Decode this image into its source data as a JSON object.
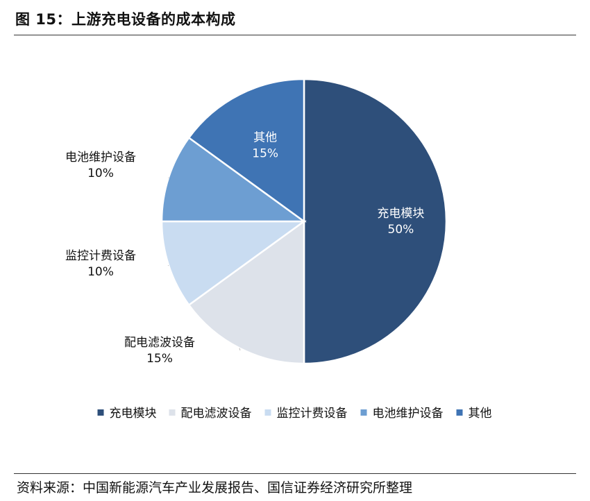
{
  "header": {
    "title": "图 15：上游充电设备的成本构成"
  },
  "chart_data": {
    "type": "pie",
    "title": "图 15：上游充电设备的成本构成",
    "slices": [
      {
        "label": "充电模块",
        "value": 50,
        "display": "50%",
        "color": "#2e4f7a"
      },
      {
        "label": "配电滤波设备",
        "value": 15,
        "display": "15%",
        "color": "#dde2ea"
      },
      {
        "label": "监控计费设备",
        "value": 10,
        "display": "10%",
        "color": "#c9dcf1"
      },
      {
        "label": "电池维护设备",
        "value": 10,
        "display": "10%",
        "color": "#6d9ed2"
      },
      {
        "label": "其他",
        "value": 15,
        "display": "15%",
        "color": "#3f74b4"
      }
    ],
    "legend_position": "bottom"
  },
  "footer": {
    "source": "资料来源：中国新能源汽车产业发展报告、国信证券经济研究所整理"
  }
}
